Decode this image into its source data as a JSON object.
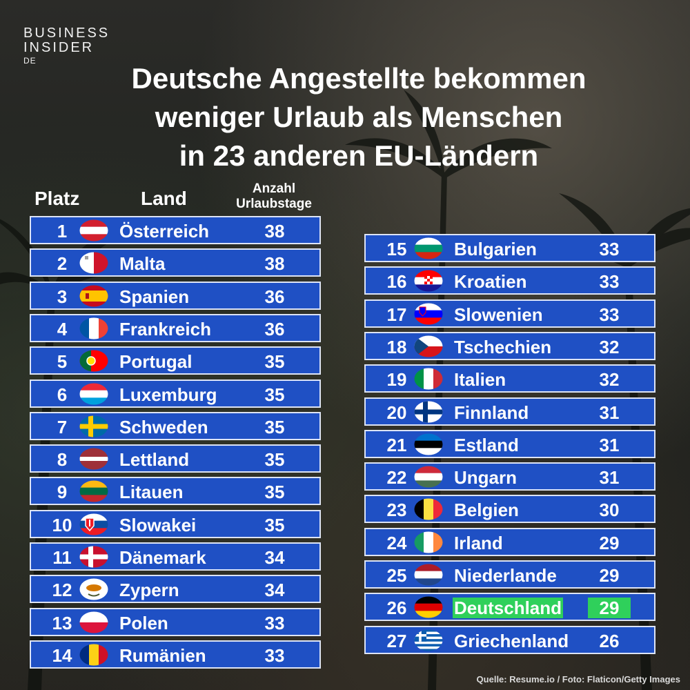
{
  "brand": {
    "line1": "BUSINESS",
    "line2": "INSIDER",
    "suffix": "DE"
  },
  "title": {
    "line1": "Deutsche Angestellte bekommen",
    "line2": "weniger Urlaub als Menschen",
    "line3": "in 23 anderen EU-Ländern"
  },
  "headers": {
    "platz": "Platz",
    "land": "Land",
    "anzahl_line1": "Anzahl",
    "anzahl_line2": "Urlaubstage"
  },
  "source": "Quelle: Resume.io / Foto: Flaticon/Getty Images",
  "colors": {
    "row_bg": "#1f50c4",
    "row_border": "#dde4f5",
    "highlight": "#2fd05b"
  },
  "chart_data": {
    "type": "table",
    "columns": [
      "Platz",
      "Land",
      "Anzahl Urlaubstage"
    ],
    "highlight": "Deutschland",
    "rows": [
      {
        "rank": 1,
        "country": "Österreich",
        "days": 38,
        "flag": "austria-flag"
      },
      {
        "rank": 2,
        "country": "Malta",
        "days": 38,
        "flag": "malta-flag"
      },
      {
        "rank": 3,
        "country": "Spanien",
        "days": 36,
        "flag": "spain-flag"
      },
      {
        "rank": 4,
        "country": "Frankreich",
        "days": 36,
        "flag": "france-flag"
      },
      {
        "rank": 5,
        "country": "Portugal",
        "days": 35,
        "flag": "portugal-flag"
      },
      {
        "rank": 6,
        "country": "Luxemburg",
        "days": 35,
        "flag": "luxembourg-flag"
      },
      {
        "rank": 7,
        "country": "Schweden",
        "days": 35,
        "flag": "sweden-flag"
      },
      {
        "rank": 8,
        "country": "Lettland",
        "days": 35,
        "flag": "latvia-flag"
      },
      {
        "rank": 9,
        "country": "Litauen",
        "days": 35,
        "flag": "lithuania-flag"
      },
      {
        "rank": 10,
        "country": "Slowakei",
        "days": 35,
        "flag": "slovakia-flag"
      },
      {
        "rank": 11,
        "country": "Dänemark",
        "days": 34,
        "flag": "denmark-flag"
      },
      {
        "rank": 12,
        "country": "Zypern",
        "days": 34,
        "flag": "cyprus-flag"
      },
      {
        "rank": 13,
        "country": "Polen",
        "days": 33,
        "flag": "poland-flag"
      },
      {
        "rank": 14,
        "country": "Rumänien",
        "days": 33,
        "flag": "romania-flag"
      },
      {
        "rank": 15,
        "country": "Bulgarien",
        "days": 33,
        "flag": "bulgaria-flag"
      },
      {
        "rank": 16,
        "country": "Kroatien",
        "days": 33,
        "flag": "croatia-flag"
      },
      {
        "rank": 17,
        "country": "Slowenien",
        "days": 33,
        "flag": "slovenia-flag"
      },
      {
        "rank": 18,
        "country": "Tschechien",
        "days": 32,
        "flag": "czechia-flag"
      },
      {
        "rank": 19,
        "country": "Italien",
        "days": 32,
        "flag": "italy-flag"
      },
      {
        "rank": 20,
        "country": "Finnland",
        "days": 31,
        "flag": "finland-flag"
      },
      {
        "rank": 21,
        "country": "Estland",
        "days": 31,
        "flag": "estonia-flag"
      },
      {
        "rank": 22,
        "country": "Ungarn",
        "days": 31,
        "flag": "hungary-flag"
      },
      {
        "rank": 23,
        "country": "Belgien",
        "days": 30,
        "flag": "belgium-flag"
      },
      {
        "rank": 24,
        "country": "Irland",
        "days": 29,
        "flag": "ireland-flag"
      },
      {
        "rank": 25,
        "country": "Niederlande",
        "days": 29,
        "flag": "netherlands-flag"
      },
      {
        "rank": 26,
        "country": "Deutschland",
        "days": 29,
        "flag": "germany-flag"
      },
      {
        "rank": 27,
        "country": "Griechenland",
        "days": 26,
        "flag": "greece-flag"
      }
    ]
  }
}
